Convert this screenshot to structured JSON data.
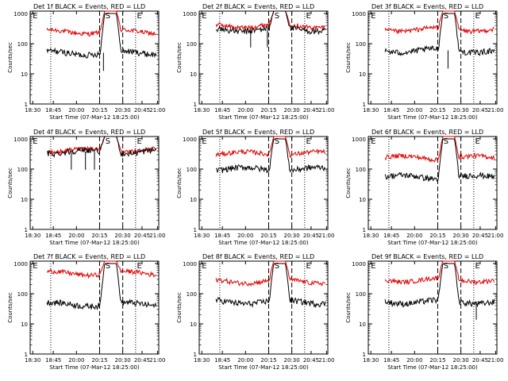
{
  "colors": {
    "events": "#000000",
    "lld": "#e00000",
    "axis": "#000000",
    "background": "#ffffff"
  },
  "chart_data": [
    {
      "type": "line",
      "title": "Det 1f BLACK = Events, RED = LLD",
      "ylabel": "Counts/sec",
      "xlabel": "Start Time (07-Mar-12 18:25:00)",
      "x_ticks": [
        "18:30",
        "18:45",
        "20:00",
        "20:15",
        "20:30",
        "20:45",
        "21:00"
      ],
      "y_ticks": [
        "1",
        "10",
        "100",
        "1000"
      ],
      "ylim": [
        1,
        1200
      ],
      "markers": [
        "E",
        "S",
        "E"
      ],
      "lld_level": 250,
      "events_level": 50,
      "lld_peak": 1200,
      "events_peak": 1000,
      "drop_events": [
        0.57
      ]
    },
    {
      "type": "line",
      "title": "Det 2f BLACK = Events, RED = LLD",
      "ylabel": "Counts/sec",
      "xlabel": "Start Time (07-Mar-12 18:25:00)",
      "x_ticks": [
        "18:30",
        "18:45",
        "20:00",
        "20:15",
        "20:30",
        "20:45",
        "21:00"
      ],
      "y_ticks": [
        "1",
        "10",
        "100",
        "1000"
      ],
      "ylim": [
        1,
        1200
      ],
      "markers": [
        "E",
        "S",
        "E"
      ],
      "lld_level": 400,
      "events_level": 300,
      "lld_peak": 1200,
      "events_peak": 1200,
      "drop_events": [
        0.4,
        0.53
      ]
    },
    {
      "type": "line",
      "title": "Det 3f BLACK = Events, RED = LLD",
      "ylabel": "Counts/sec",
      "xlabel": "Start Time (07-Mar-12 18:25:00)",
      "x_ticks": [
        "18:30",
        "18:45",
        "20:00",
        "20:15",
        "20:30",
        "20:45",
        "21:00"
      ],
      "y_ticks": [
        "1",
        "10",
        "100",
        "1000"
      ],
      "ylim": [
        1,
        1200
      ],
      "markers": [
        "E",
        "S",
        "E"
      ],
      "lld_level": 300,
      "events_level": 60,
      "lld_peak": 1200,
      "events_peak": 1000,
      "drop_events": [
        0.62
      ]
    },
    {
      "type": "line",
      "title": "Det 4f BLACK = Events, RED = LLD",
      "ylabel": "Counts/sec",
      "xlabel": "Start Time (07-Mar-12 18:25:00)",
      "x_ticks": [
        "18:30",
        "18:45",
        "20:00",
        "20:15",
        "20:30",
        "20:45",
        "21:00"
      ],
      "y_ticks": [
        "1",
        "10",
        "100",
        "1000"
      ],
      "ylim": [
        1,
        1200
      ],
      "markers": [
        "E",
        "S",
        "E"
      ],
      "lld_level": 420,
      "events_level": 380,
      "lld_peak": 1200,
      "events_peak": 1200,
      "drop_events": [
        0.32,
        0.43,
        0.5
      ]
    },
    {
      "type": "line",
      "title": "Det 5f BLACK = Events, RED = LLD",
      "ylabel": "Counts/sec",
      "xlabel": "Start Time (07-Mar-12 18:25:00)",
      "x_ticks": [
        "18:30",
        "18:45",
        "20:00",
        "20:15",
        "20:30",
        "20:45",
        "21:00"
      ],
      "y_ticks": [
        "1",
        "10",
        "100",
        "1000"
      ],
      "ylim": [
        1,
        1200
      ],
      "markers": [
        "E",
        "S",
        "E"
      ],
      "lld_level": 330,
      "events_level": 100,
      "lld_peak": 1200,
      "events_peak": 1000,
      "drop_events": []
    },
    {
      "type": "line",
      "title": "Det 6f BLACK = Events, RED = LLD",
      "ylabel": "Counts/sec",
      "xlabel": "Start Time (07-Mar-12 18:25:00)",
      "x_ticks": [
        "18:30",
        "18:45",
        "20:00",
        "20:15",
        "20:30",
        "20:45",
        "21:00"
      ],
      "y_ticks": [
        "1",
        "10",
        "100",
        "1000"
      ],
      "ylim": [
        1,
        1200
      ],
      "markers": [
        "E",
        "S",
        "E"
      ],
      "lld_level": 240,
      "events_level": 55,
      "lld_peak": 1200,
      "events_peak": 1000,
      "drop_events": []
    },
    {
      "type": "line",
      "title": "Det 7f BLACK = Events, RED = LLD",
      "ylabel": "Counts/sec",
      "xlabel": "Start Time (07-Mar-12 18:25:00)",
      "x_ticks": [
        "18:30",
        "18:45",
        "20:00",
        "20:15",
        "20:30",
        "20:45",
        "21:00"
      ],
      "y_ticks": [
        "1",
        "10",
        "100",
        "1000"
      ],
      "ylim": [
        1,
        1200
      ],
      "markers": [
        "E",
        "S",
        "E"
      ],
      "lld_level": 480,
      "events_level": 45,
      "lld_peak": 1200,
      "events_peak": 1000,
      "drop_events": []
    },
    {
      "type": "line",
      "title": "Det 8f BLACK = Events, RED = LLD",
      "ylabel": "Counts/sec",
      "xlabel": "Start Time (07-Mar-12 18:25:00)",
      "x_ticks": [
        "18:30",
        "18:45",
        "20:00",
        "20:15",
        "20:30",
        "20:45",
        "21:00"
      ],
      "y_ticks": [
        "1",
        "10",
        "100",
        "1000"
      ],
      "ylim": [
        1,
        1200
      ],
      "markers": [
        "E",
        "S",
        "E"
      ],
      "lld_level": 260,
      "events_level": 55,
      "lld_peak": 1200,
      "events_peak": 1000,
      "drop_events": []
    },
    {
      "type": "line",
      "title": "Det 9f BLACK = Events, RED = LLD",
      "ylabel": "Counts/sec",
      "xlabel": "Start Time (07-Mar-12 18:25:00)",
      "x_ticks": [
        "18:30",
        "18:45",
        "20:00",
        "20:15",
        "20:30",
        "20:45",
        "21:00"
      ],
      "y_ticks": [
        "1",
        "10",
        "100",
        "1000"
      ],
      "ylim": [
        1,
        1200
      ],
      "markers": [
        "E",
        "S",
        "E"
      ],
      "lld_level": 290,
      "events_level": 55,
      "lld_peak": 1200,
      "events_peak": 1000,
      "drop_events": [
        0.84
      ]
    }
  ]
}
